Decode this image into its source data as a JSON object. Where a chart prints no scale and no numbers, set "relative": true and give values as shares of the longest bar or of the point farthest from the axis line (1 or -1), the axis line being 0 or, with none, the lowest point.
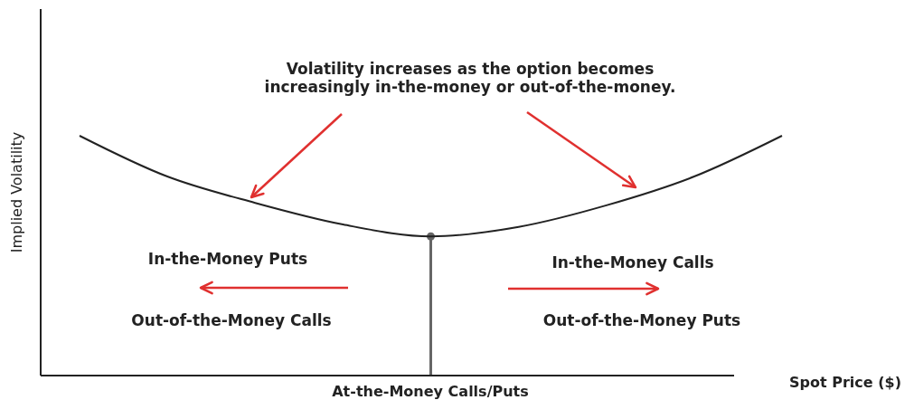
{
  "chart_data": {
    "type": "line",
    "relative": true,
    "categories": [
      null,
      null,
      null,
      null,
      null,
      null,
      null,
      null,
      null
    ],
    "series": [
      {
        "color": "#222222",
        "values": [
          1,
          0.83,
          0.72,
          0.63,
          0.58,
          0.62,
          0.71,
          0.83,
          1
        ]
      }
    ],
    "xlabel": "Spot Price ($)",
    "ylabel": "Implied Volatility",
    "marker": "none",
    "line_style": "solid",
    "annotations": [
      "Volatility increases as the option becomes\nincreasingly in-the-money or out-of-the-money.",
      "In-the-Money Puts",
      "Out-of-the-Money Calls",
      "In-the-Money Calls",
      "Out-of-the-Money Puts",
      "At-the-Money Calls/Puts"
    ]
  }
}
